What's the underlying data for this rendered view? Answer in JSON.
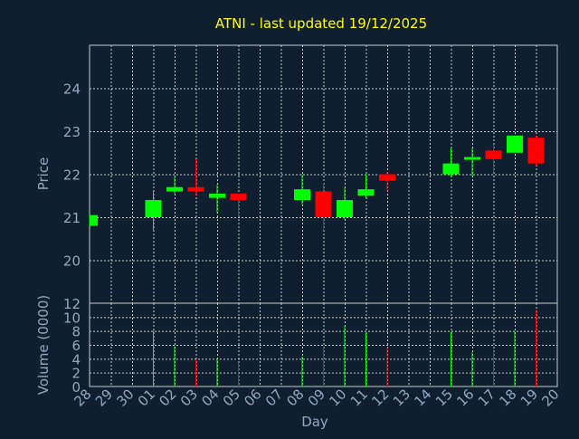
{
  "chart_data": {
    "type": "candlestick",
    "title": "ATNI - last updated 19/12/2025",
    "xlabel": "Day",
    "price_panel": {
      "ylabel": "Price",
      "ylim": [
        19,
        25
      ],
      "yticks": [
        20,
        21,
        22,
        23,
        24
      ]
    },
    "volume_panel": {
      "ylabel": "Volume (0000)",
      "ylim": [
        0,
        12
      ],
      "yticks": [
        0,
        2,
        4,
        6,
        8,
        10,
        12
      ]
    },
    "x_tick_labels": [
      "28",
      "29",
      "30",
      "01",
      "02",
      "03",
      "04",
      "05",
      "06",
      "07",
      "08",
      "09",
      "10",
      "11",
      "12",
      "13",
      "14",
      "15",
      "16",
      "17",
      "18",
      "19",
      "20"
    ],
    "colors": {
      "background": "#0f1f2f",
      "grid": "#c8c8c8",
      "up": "#00ff00",
      "down": "#ff0000",
      "text": "#8fa9c4",
      "title": "#ffff00"
    },
    "candles": [
      {
        "day": "28",
        "open": 20.8,
        "high": 21.05,
        "low": 20.8,
        "close": 21.05,
        "volume": 0
      },
      {
        "day": "01",
        "open": 21.0,
        "high": 21.6,
        "low": 20.7,
        "close": 21.4,
        "volume": 8.0
      },
      {
        "day": "02",
        "open": 21.6,
        "high": 21.95,
        "low": 21.55,
        "close": 21.7,
        "volume": 5.8
      },
      {
        "day": "03",
        "open": 21.7,
        "high": 22.35,
        "low": 21.5,
        "close": 21.6,
        "volume": 3.8
      },
      {
        "day": "04",
        "open": 21.45,
        "high": 21.75,
        "low": 21.1,
        "close": 21.55,
        "volume": 4.1
      },
      {
        "day": "05",
        "open": 21.55,
        "high": 21.55,
        "low": 21.0,
        "close": 21.4,
        "volume": 3.4
      },
      {
        "day": "08",
        "open": 21.4,
        "high": 22.0,
        "low": 21.3,
        "close": 21.65,
        "volume": 4.3
      },
      {
        "day": "09",
        "open": 21.6,
        "high": 21.8,
        "low": 20.7,
        "close": 21.0,
        "volume": 5.9
      },
      {
        "day": "10",
        "open": 21.0,
        "high": 21.7,
        "low": 20.95,
        "close": 21.4,
        "volume": 8.8
      },
      {
        "day": "11",
        "open": 21.5,
        "high": 22.0,
        "low": 21.45,
        "close": 21.65,
        "volume": 7.8
      },
      {
        "day": "12",
        "open": 22.0,
        "high": 22.05,
        "low": 21.6,
        "close": 21.85,
        "volume": 5.7
      },
      {
        "day": "15",
        "open": 22.0,
        "high": 22.6,
        "low": 21.95,
        "close": 22.25,
        "volume": 7.9
      },
      {
        "day": "16",
        "open": 22.35,
        "high": 22.6,
        "low": 21.95,
        "close": 22.4,
        "volume": 4.9
      },
      {
        "day": "17",
        "open": 22.55,
        "high": 22.7,
        "low": 22.05,
        "close": 22.35,
        "volume": 5.2
      },
      {
        "day": "18",
        "open": 22.5,
        "high": 22.9,
        "low": 22.5,
        "close": 22.9,
        "volume": 8.0
      },
      {
        "day": "19",
        "open": 22.85,
        "high": 22.9,
        "low": 22.2,
        "close": 22.25,
        "volume": 11.0
      }
    ]
  }
}
